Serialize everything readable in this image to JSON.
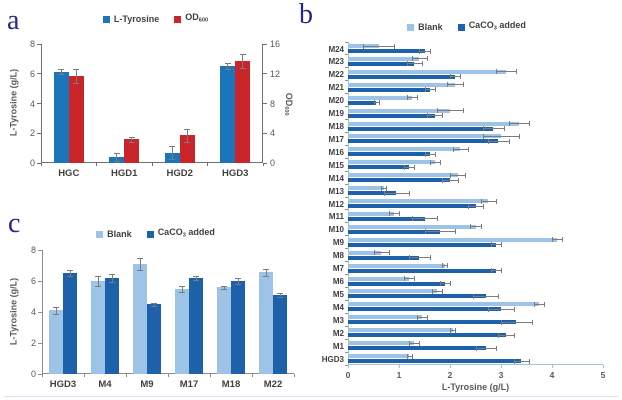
{
  "figure": {
    "panel_letters": {
      "a": "a",
      "b": "b",
      "c": "c"
    }
  },
  "chart_data": [
    {
      "id": "a",
      "type": "bar",
      "orientation": "vertical",
      "categories": [
        "HGC",
        "HGD1",
        "HGD2",
        "HGD3"
      ],
      "series": [
        {
          "name": "L-Tyrosine",
          "label_parts": {
            "label": "L-Tyrosine"
          },
          "color": "#1B75BB",
          "axis": "left",
          "values": [
            6.15,
            0.4,
            0.7,
            6.5
          ],
          "errors": [
            0.2,
            0.25,
            0.45,
            0.2
          ]
        },
        {
          "name": "OD600",
          "label_parts": {
            "label": "OD",
            "sub": "600"
          },
          "color": "#C9252B",
          "axis": "right",
          "values": [
            11.7,
            3.2,
            3.7,
            13.7
          ],
          "errors": [
            1.0,
            0.35,
            0.85,
            0.9
          ]
        }
      ],
      "left_axis": {
        "label": "L-Tyrosine (g/L)",
        "min": 0,
        "max": 8,
        "ticks": [
          0,
          2,
          4,
          6,
          8
        ]
      },
      "right_axis": {
        "label_parts": {
          "label": "OD",
          "sub": "600"
        },
        "min": 0,
        "max": 16,
        "ticks": [
          0,
          4,
          8,
          12,
          16
        ]
      },
      "legend_position": "top",
      "grid": false
    },
    {
      "id": "b",
      "type": "bar",
      "orientation": "horizontal",
      "categories": [
        "M24",
        "M23",
        "M22",
        "M21",
        "M20",
        "M19",
        "M18",
        "M17",
        "M16",
        "M15",
        "M14",
        "M13",
        "M12",
        "M11",
        "M10",
        "M9",
        "M8",
        "M7",
        "M6",
        "M5",
        "M4",
        "M3",
        "M2",
        "M1",
        "HGD3"
      ],
      "series": [
        {
          "name": "Blank",
          "label_parts": {
            "label": "Blank"
          },
          "color": "#9DC3E6",
          "values": [
            0.6,
            1.4,
            3.1,
            2.1,
            1.25,
            2.0,
            3.35,
            3.0,
            2.2,
            1.7,
            2.15,
            0.7,
            2.75,
            0.9,
            2.5,
            4.1,
            0.65,
            1.9,
            1.2,
            1.75,
            3.75,
            1.45,
            2.05,
            1.3,
            1.2
          ],
          "errors": [
            0.3,
            0.15,
            0.2,
            0.15,
            0.1,
            0.25,
            0.2,
            0.35,
            0.15,
            0.1,
            0.15,
            0.05,
            0.15,
            0.1,
            0.1,
            0.1,
            0.15,
            0.05,
            0.1,
            0.1,
            0.1,
            0.1,
            0.05,
            0.1,
            0.05
          ]
        },
        {
          "name": "CaCO3 added",
          "label_parts": {
            "label": "CaCO",
            "sub": "3",
            "suffix": " added"
          },
          "color": "#1C61A9",
          "values": [
            1.5,
            1.3,
            2.1,
            1.6,
            0.55,
            1.7,
            2.85,
            2.95,
            1.6,
            1.2,
            2.0,
            0.95,
            2.5,
            1.5,
            1.8,
            2.9,
            1.4,
            2.9,
            1.9,
            2.7,
            3.0,
            3.3,
            3.1,
            2.7,
            3.4
          ],
          "errors": [
            0.1,
            0.15,
            0.1,
            0.1,
            0.05,
            0.15,
            0.2,
            0.2,
            0.1,
            0.1,
            0.15,
            0.25,
            0.15,
            0.25,
            0.3,
            0.1,
            0.2,
            0.1,
            0.1,
            0.25,
            0.25,
            0.3,
            0.15,
            0.2,
            0.15
          ]
        }
      ],
      "x_axis": {
        "label": "L-Tyrosine (g/L)",
        "min": 0,
        "max": 5,
        "ticks": [
          0,
          1,
          2,
          3,
          4,
          5
        ]
      },
      "legend_position": "top",
      "grid": false
    },
    {
      "id": "c",
      "type": "bar",
      "orientation": "vertical",
      "categories": [
        "HGD3",
        "M4",
        "M9",
        "M17",
        "M18",
        "M22"
      ],
      "series": [
        {
          "name": "Blank",
          "label_parts": {
            "label": "Blank"
          },
          "color": "#9DC3E6",
          "axis": "left",
          "values": [
            4.1,
            6.0,
            7.1,
            5.5,
            5.6,
            6.55
          ],
          "errors": [
            0.2,
            0.3,
            0.4,
            0.2,
            0.1,
            0.2
          ]
        },
        {
          "name": "CaCO3 added",
          "label_parts": {
            "label": "CaCO",
            "sub": "3",
            "suffix": " added"
          },
          "color": "#1C61A9",
          "axis": "left",
          "values": [
            6.5,
            6.2,
            4.5,
            6.2,
            6.0,
            5.1
          ],
          "errors": [
            0.2,
            0.25,
            0.1,
            0.15,
            0.2,
            0.1
          ]
        }
      ],
      "left_axis": {
        "label": "L-Tyrosine (g/L)",
        "min": 0,
        "max": 8,
        "ticks": [
          0,
          2,
          4,
          6,
          8
        ]
      },
      "legend_position": "top",
      "grid": false
    }
  ]
}
